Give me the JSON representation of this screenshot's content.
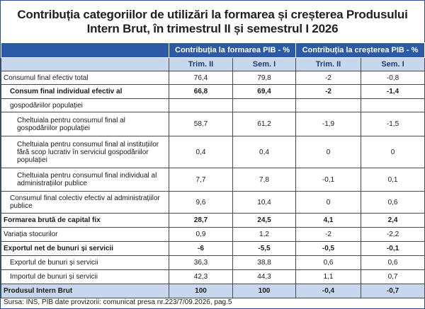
{
  "title": {
    "line1": "Contribuția categoriilor de utilizări la formarea și creșterea Produsului",
    "line2": "Intern Brut, în trimestrul II și semestrul I 2026"
  },
  "header": {
    "group1": "Contribuția la formarea PIB - %",
    "group2": "Contribuția la creșterea PIB - %",
    "sub": [
      "Trim. II",
      "Sem. I",
      "Trim. II",
      "Sem. I"
    ]
  },
  "rows": [
    {
      "label": "Consumul final  efectiv total",
      "v": [
        "76,4",
        "79,8",
        "-2",
        "-0,8"
      ]
    },
    {
      "label": "Consum final individual efectiv al",
      "v": [
        "66,8",
        "69,4",
        "-2",
        "-1,4"
      ]
    },
    {
      "label": "gospodăriilor populației",
      "v": [
        "",
        "",
        "",
        ""
      ]
    },
    {
      "label": "Cheltuiala pentru consumul final al gospodăriilor populației",
      "v": [
        "58,7",
        "61,2",
        "-1,9",
        "-1,5"
      ]
    },
    {
      "label": "Cheltuiala pentru consumul final al instituțiilor fără scop lucrativ în serviciul gospodăriilor populației",
      "v": [
        "0,4",
        "0,4",
        "0",
        "0"
      ]
    },
    {
      "label": "Cheltuiala pentru consumul final individual al administrațiilor publice",
      "v": [
        "7,7",
        "7,8",
        "-0,1",
        "0,1"
      ]
    },
    {
      "label": "Consumul final colectiv efectiv al administrațiilor publice",
      "v": [
        "9,6",
        "10,4",
        "0",
        "0,6"
      ]
    },
    {
      "label": "Formarea brută de capital fix",
      "v": [
        "28,7",
        "24,5",
        "4,1",
        "2,4"
      ]
    },
    {
      "label": "Variația stocurilor",
      "v": [
        "0,9",
        "1,2",
        "-2",
        "-2,2"
      ]
    },
    {
      "label": "Exportul net de bunuri și servicii",
      "v": [
        "-6",
        "-5,5",
        "-0,5",
        "-0,1"
      ]
    },
    {
      "label": "Exportul de bunuri și servicii",
      "v": [
        "36,3",
        "38,8",
        "0,6",
        "0,6"
      ]
    },
    {
      "label": "Importul de bunuri și servicii",
      "v": [
        "42,3",
        "44,3",
        "1,1",
        "0,7"
      ]
    },
    {
      "label": "Produsul Intern Brut",
      "v": [
        "100",
        "100",
        "-0,4",
        "-0,7"
      ]
    }
  ],
  "source": "Sursa: INS, PIB date provizorii: comunicat presa nr.223/7/09.2026, pag.5"
}
